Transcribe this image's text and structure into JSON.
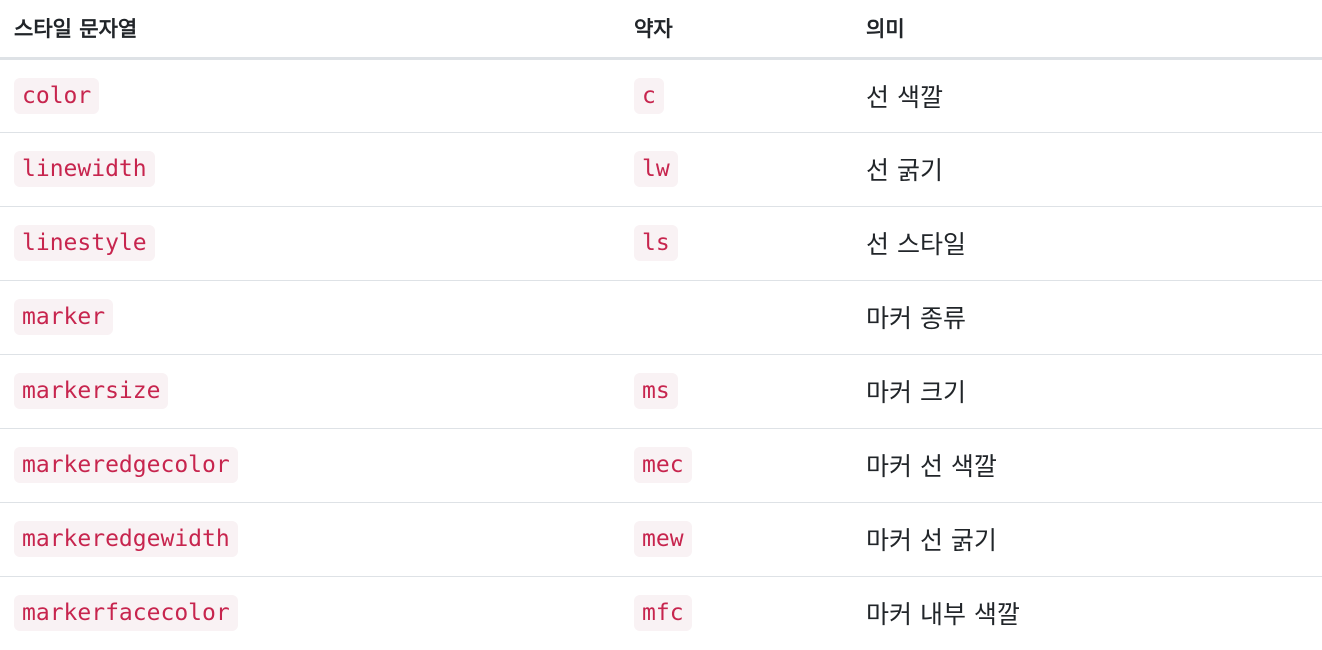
{
  "table": {
    "headers": [
      "스타일 문자열",
      "약자",
      "의미"
    ],
    "rows": [
      {
        "name": "color",
        "abbr": "c",
        "meaning": "선 색깔"
      },
      {
        "name": "linewidth",
        "abbr": "lw",
        "meaning": "선 굵기"
      },
      {
        "name": "linestyle",
        "abbr": "ls",
        "meaning": "선 스타일"
      },
      {
        "name": "marker",
        "abbr": "",
        "meaning": "마커 종류"
      },
      {
        "name": "markersize",
        "abbr": "ms",
        "meaning": "마커 크기"
      },
      {
        "name": "markeredgecolor",
        "abbr": "mec",
        "meaning": "마커 선 색깔"
      },
      {
        "name": "markeredgewidth",
        "abbr": "mew",
        "meaning": "마커 선 굵기"
      },
      {
        "name": "markerfacecolor",
        "abbr": "mfc",
        "meaning": "마커 내부 색깔"
      }
    ]
  }
}
